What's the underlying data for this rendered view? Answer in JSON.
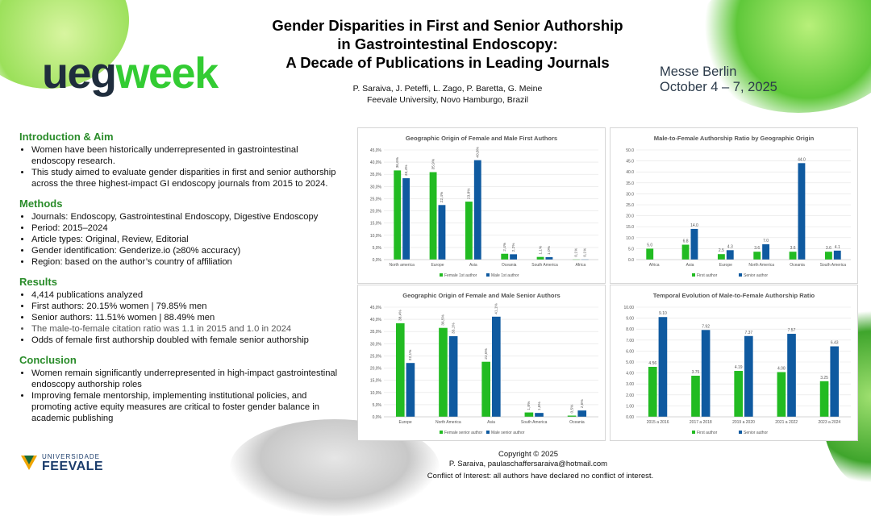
{
  "header": {
    "title_lines": [
      "Gender Disparities in First and Senior Authorship",
      "in Gastrointestinal Endoscopy:",
      "A Decade of Publications in Leading Journals"
    ],
    "authors": "P. Saraiva, J. Peteffi, L. Zago, P. Baretta, G. Meine",
    "affiliation": "Feevale University, Novo Hamburgo, Brazil",
    "logo_part1": "ueg",
    "logo_part2": "week",
    "event_venue": "Messe Berlin",
    "event_dates": "October 4 – 7, 2025"
  },
  "colors": {
    "green": "#22bb22",
    "blue": "#0f5aa0",
    "heading_green": "#2a8c2a"
  },
  "intro": {
    "heading": "Introduction & Aim",
    "items": [
      "Women have been historically underrepresented in gastrointestinal endoscopy research.",
      "This study aimed to evaluate gender disparities in first and senior authorship across the three highest-impact GI endoscopy journals from 2015 to 2024."
    ]
  },
  "methods": {
    "heading": "Methods",
    "items": [
      "Journals: Endoscopy, Gastrointestinal Endoscopy, Digestive Endoscopy",
      "Period: 2015–2024",
      "Article types: Original, Review, Editorial",
      "Gender identification: Genderize.io (≥80% accuracy)",
      "Region: based on the author’s country of affiliation"
    ]
  },
  "results": {
    "heading": "Results",
    "items": [
      "4,414 publications analyzed",
      "First authors: 20.15% women  |  79.85% men",
      "Senior authors: 11.51% women  |  88.49% men",
      "The male-to-female citation ratio was 1.1 in 2015 and 1.0 in 2024",
      "Odds of female first authorship doubled with female senior authorship"
    ]
  },
  "conclusion": {
    "heading": "Conclusion",
    "items": [
      "Women remain significantly underrepresented in high-impact gastrointestinal endoscopy authorship roles",
      "Improving female mentorship, implementing institutional policies, and promoting active equity measures are critical to foster gender balance  in academic publishing"
    ]
  },
  "footer": {
    "copyright": "Copyright © 2025",
    "contact": "P. Saraiva, paulaschaffersaraiva@hotmail.com",
    "conflict": "Conflict of Interest: all authors have declared no conflict of interest.",
    "university_small": "UNIVERSIDADE",
    "university_big": "FEEVALE"
  },
  "chart_data": [
    {
      "type": "bar",
      "title": "Geographic Origin of Female and Male First Authors",
      "categories": [
        "North america",
        "Europe",
        "Asia",
        "Oceania",
        "South America",
        "Africa"
      ],
      "series": [
        {
          "name": "Female 1st author",
          "values": [
            36.6,
            35.9,
            23.8,
            2.4,
            1.1,
            0.1
          ],
          "labels": [
            "36,6%",
            "35,9%",
            "23,8%",
            "2,4%",
            "1,1%",
            "0,1%"
          ]
        },
        {
          "name": "Male 1st author",
          "values": [
            33.4,
            22.4,
            40.8,
            2.2,
            1.0,
            0.1
          ],
          "labels": [
            "33,4%",
            "22,4%",
            "40,8%",
            "2,2%",
            "1,0%",
            "0,1%"
          ]
        }
      ],
      "ylim": [
        0,
        45
      ],
      "yticks": [
        "0,0%",
        "5,0%",
        "10,0%",
        "15,0%",
        "20,0%",
        "25,0%",
        "30,0%",
        "35,0%",
        "40,0%",
        "45,0%"
      ],
      "legend": "bottom",
      "grid": true
    },
    {
      "type": "bar",
      "title": "Male-to-Female Authorship Ratio by Geographic Origin",
      "categories": [
        "Africa",
        "Asia",
        "Europe",
        "North America",
        "Oceania",
        "South America"
      ],
      "series": [
        {
          "name": "First author",
          "values": [
            5.0,
            6.8,
            2.5,
            3.6,
            3.6,
            3.6
          ],
          "labels": [
            "5.0",
            "6.8",
            "2.5",
            "3.6",
            "3.6",
            "3.6"
          ]
        },
        {
          "name": "Senior author",
          "values": [
            null,
            14.0,
            4.3,
            7.0,
            44.0,
            4.1
          ],
          "labels": [
            "",
            "14.0",
            "4.3",
            "7.0",
            "44.0",
            "4.1"
          ]
        }
      ],
      "ylim": [
        0,
        50
      ],
      "yticks": [
        "0.0",
        "5.0",
        "10.0",
        "15.0",
        "20.0",
        "25.0",
        "30.0",
        "35.0",
        "40.0",
        "45.0",
        "50.0"
      ],
      "legend": "bottom",
      "grid": true
    },
    {
      "type": "bar",
      "title": "Geographic Origin of Female and Male Senior Authors",
      "categories": [
        "Europe",
        "North America",
        "Asia",
        "South America",
        "Oceania"
      ],
      "series": [
        {
          "name": "Female senior author",
          "values": [
            38.4,
            36.5,
            22.6,
            1.8,
            0.5
          ],
          "labels": [
            "38,4%",
            "36,5%",
            "22,6%",
            "1,8%",
            "0,5%"
          ]
        },
        {
          "name": "Male senior author",
          "values": [
            22.1,
            33.1,
            41.1,
            1.6,
            2.6
          ],
          "labels": [
            "22,1%",
            "33,1%",
            "41,1%",
            "1,6%",
            "2,6%"
          ]
        }
      ],
      "ylim": [
        0,
        45
      ],
      "yticks": [
        "0,0%",
        "5,0%",
        "10,0%",
        "15,0%",
        "20,0%",
        "25,0%",
        "30,0%",
        "35,0%",
        "40,0%",
        "45,0%"
      ],
      "legend": "bottom",
      "grid": true
    },
    {
      "type": "bar",
      "title": "Temporal Evolution of Male-to-Female Authorship Ratio",
      "categories": [
        "2015 a 2016",
        "2017 a 2018",
        "2019 a 2020",
        "2021 a 2022",
        "2023 a 2024"
      ],
      "series": [
        {
          "name": "First author",
          "values": [
            4.56,
            3.75,
            4.19,
            4.08,
            3.25
          ],
          "labels": [
            "4.56",
            "3.75",
            "4.19",
            "4.08",
            "3.25"
          ]
        },
        {
          "name": "Senior author",
          "values": [
            9.1,
            7.92,
            7.37,
            7.57,
            6.43
          ],
          "labels": [
            "9.10",
            "7.92",
            "7.37",
            "7.57",
            "6.43"
          ]
        }
      ],
      "ylim": [
        0,
        10
      ],
      "yticks": [
        "0.00",
        "1.00",
        "2.00",
        "3.00",
        "4.00",
        "5.00",
        "6.00",
        "7.00",
        "8.00",
        "9.00",
        "10.00"
      ],
      "legend": "bottom",
      "grid": true
    }
  ]
}
